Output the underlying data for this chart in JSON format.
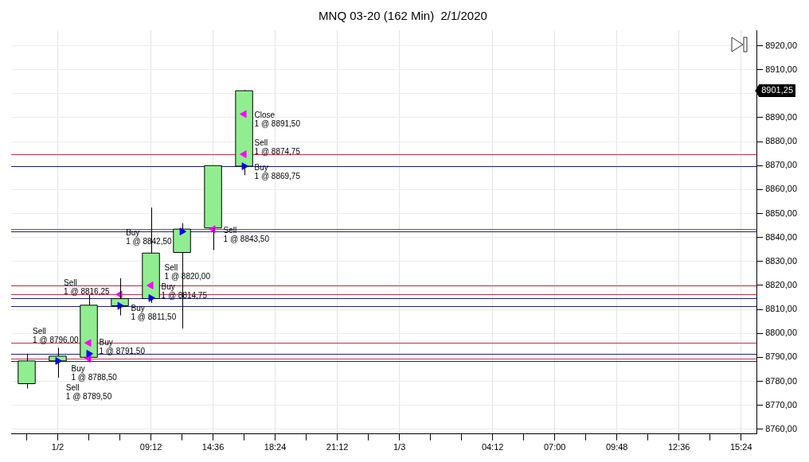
{
  "chart_data": {
    "type": "candlestick",
    "title": "MNQ 03-20 (162 Min)  2/1/2020",
    "categories": [
      null,
      "1/2",
      null,
      null,
      "09:12",
      null,
      "14:36",
      null,
      "18:24",
      null,
      "21:12",
      null,
      "1/3",
      null,
      null,
      "04:12",
      null,
      "07:00",
      null,
      "09:48",
      null,
      "12:36",
      null,
      "15:24"
    ],
    "ohlc": [
      [
        8779,
        8791.5,
        8777,
        8788.5
      ],
      [
        8788.5,
        8794,
        8781.5,
        8790.5
      ],
      [
        8790,
        8816,
        8788,
        8811.75
      ],
      [
        8811.5,
        8823,
        8807.5,
        8814.5
      ],
      [
        8814.5,
        8852.5,
        8812.75,
        8833.5
      ],
      [
        8833.75,
        8846,
        8802,
        8843.5
      ],
      [
        8844,
        8870,
        8834.75,
        8870
      ],
      [
        8869.75,
        8901.5,
        8866,
        8901.25
      ],
      null,
      null,
      null,
      null,
      null,
      null,
      null,
      null,
      null,
      null,
      null,
      null,
      null,
      null,
      null,
      null
    ],
    "color": "#90ee90",
    "series": [
      {
        "type": "scatter",
        "color": "#0000ff",
        "marker": "triangle",
        "values": [
          null,
          8788.5,
          8791.5,
          8811.5,
          8814.75,
          8842.5,
          null,
          8869.75,
          null,
          null,
          null,
          null,
          null,
          null,
          null,
          null,
          null,
          null,
          null,
          null,
          null,
          null,
          null,
          null
        ],
        "value_labels": [
          null,
          "Buy\n1 @ 8788,50",
          "Buy\n1 @ 8791,50",
          "Buy\n1 @ 8811,50",
          "Buy\n1 @ 8814,75",
          "Buy\n1 @ 8842,50",
          null,
          "Buy\n1 @ 8869,75",
          null,
          null,
          null,
          null,
          null,
          null,
          null,
          null,
          null,
          null,
          null,
          null,
          null,
          null,
          null,
          null
        ]
      },
      {
        "type": "scatter",
        "color": "#ff00ff",
        "marker": "triangle",
        "values": [
          null,
          null,
          8796,
          8816.25,
          8820,
          null,
          8843.5,
          8874.75,
          null,
          null,
          null,
          null,
          null,
          null,
          null,
          null,
          null,
          null,
          null,
          null,
          null,
          null,
          null,
          null
        ],
        "value_labels": [
          null,
          null,
          "Sell\n1 @ 8796,00",
          "Sell\n1 @ 8816,25",
          "Sell\n1 @ 8820,00",
          null,
          "Sell\n1 @ 8843,50",
          "Sell\n1 @ 8874,75",
          null,
          null,
          null,
          null,
          null,
          null,
          null,
          null,
          null,
          null,
          null,
          null,
          null,
          null,
          null,
          null
        ]
      },
      {
        "type": "scatter",
        "color": "#ff00ff",
        "marker": "triangle",
        "values": [
          null,
          null,
          8789.5,
          null,
          null,
          null,
          null,
          8891.5,
          null,
          null,
          null,
          null,
          null,
          null,
          null,
          null,
          null,
          null,
          null,
          null,
          null,
          null,
          null,
          null
        ],
        "value_labels": [
          null,
          null,
          "Sell\n1 @ 8789,50",
          null,
          null,
          null,
          null,
          "Close\n1 @ 8891,50",
          null,
          null,
          null,
          null,
          null,
          null,
          null,
          null,
          null,
          null,
          null,
          null,
          null,
          null,
          null,
          null
        ]
      }
    ],
    "ylim": [
      8758,
      8926.5
    ],
    "yticks": [
      {
        "value": 8760,
        "label": "8760,00"
      },
      {
        "value": 8770,
        "label": "8770,00"
      },
      {
        "value": 8780,
        "label": "8780,00"
      },
      {
        "value": 8790,
        "label": "8790,00"
      },
      {
        "value": 8800,
        "label": "8800,00"
      },
      {
        "value": 8810,
        "label": "8810,00"
      },
      {
        "value": 8820,
        "label": "8820,00"
      },
      {
        "value": 8830,
        "label": "8830,00"
      },
      {
        "value": 8840,
        "label": "8840,00"
      },
      {
        "value": 8850,
        "label": "8850,00"
      },
      {
        "value": 8860,
        "label": "8860,00"
      },
      {
        "value": 8870,
        "label": "8870,00"
      },
      {
        "value": 8880,
        "label": "8880,00"
      },
      {
        "value": 8890,
        "label": "8890,00"
      },
      {
        "value": 8900,
        "label": null
      },
      {
        "value": 8910,
        "label": "8910,00"
      },
      {
        "value": 8920,
        "label": "8920,00"
      }
    ],
    "ref_lines": [
      {
        "axis": "y",
        "value": 8874.75,
        "color": "#c0304a"
      },
      {
        "axis": "y",
        "value": 8869.75,
        "color": "#20207a"
      },
      {
        "axis": "y",
        "value": 8843.5,
        "color": "#c0304a"
      },
      {
        "axis": "y",
        "value": 8842.5,
        "color": "#20207a"
      },
      {
        "axis": "y",
        "value": 8820,
        "color": "#c0304a"
      },
      {
        "axis": "y",
        "value": 8816.25,
        "color": "#c0304a"
      },
      {
        "axis": "y",
        "value": 8814.75,
        "color": "#20207a"
      },
      {
        "axis": "y",
        "value": 8811.5,
        "color": "#20207a"
      },
      {
        "axis": "y",
        "value": 8796,
        "color": "#c0304a"
      },
      {
        "axis": "y",
        "value": 8791.5,
        "color": "#20207a"
      },
      {
        "axis": "y",
        "value": 8789.5,
        "color": "#c0304a"
      },
      {
        "axis": "y",
        "value": 8788.5,
        "color": "#20207a"
      }
    ],
    "annotations": [
      "8901,25"
    ],
    "grid": true,
    "legend": false
  }
}
